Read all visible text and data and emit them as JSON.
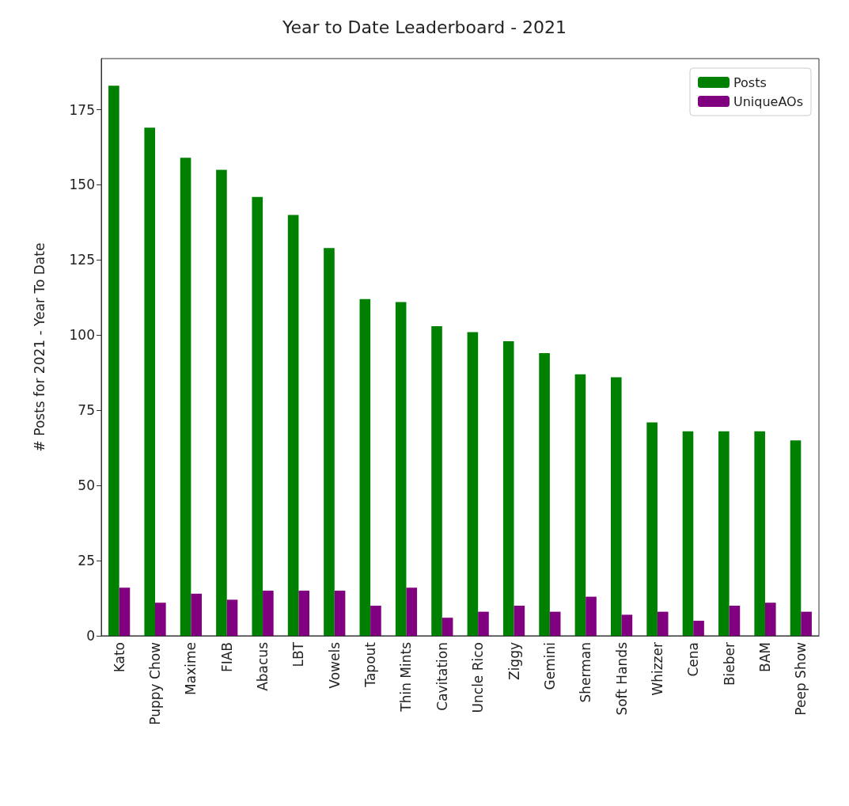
{
  "chart_data": {
    "type": "bar",
    "title": "Year to Date Leaderboard - 2021",
    "ylabel": "# Posts for 2021 - Year To Date",
    "categories": [
      "Kato",
      "Puppy Chow",
      "Maxime",
      "FIAB",
      "Abacus",
      "LBT",
      "Vowels",
      "Tapout",
      "Thin Mints",
      "Cavitation",
      "Uncle Rico",
      "Ziggy",
      "Gemini",
      "Sherman",
      "Soft Hands",
      "Whizzer",
      "Cena",
      "Bieber",
      "BAM",
      "Peep Show"
    ],
    "series": [
      {
        "name": "Posts",
        "color": "#008000",
        "values": [
          183,
          169,
          159,
          155,
          146,
          140,
          129,
          112,
          111,
          103,
          101,
          98,
          94,
          87,
          86,
          71,
          68,
          68,
          68,
          65
        ]
      },
      {
        "name": "UniqueAOs",
        "color": "#800080",
        "values": [
          16,
          11,
          14,
          12,
          15,
          15,
          15,
          10,
          16,
          6,
          8,
          10,
          8,
          13,
          7,
          8,
          5,
          10,
          11,
          8
        ]
      }
    ],
    "ylim": [
      0,
      192
    ],
    "yticks": [
      0,
      25,
      50,
      75,
      100,
      125,
      150,
      175
    ],
    "grid": false,
    "legend": "top right"
  }
}
